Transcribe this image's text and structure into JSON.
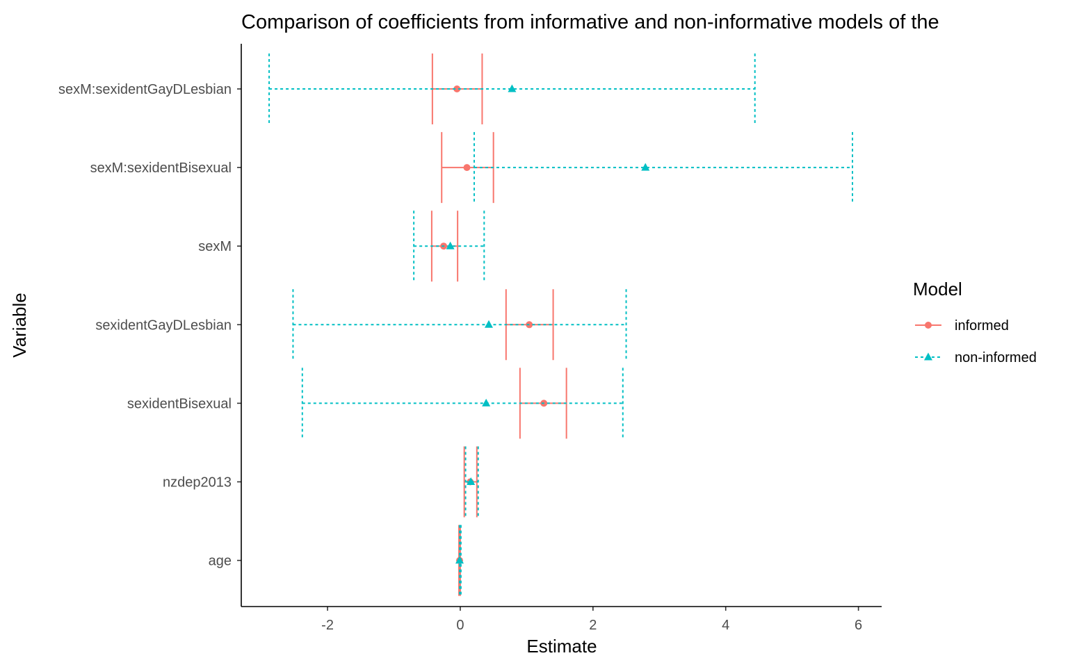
{
  "chart_data": {
    "type": "scatter",
    "title": "Comparison of coefficients from informative and non-informative models of the",
    "xlabel": "Estimate",
    "ylabel": "Variable",
    "xlim": [
      -3.3,
      6.35
    ],
    "xticks": [
      -2,
      0,
      2,
      4,
      6
    ],
    "xtick_labels": [
      "-2",
      "0",
      "2",
      "4",
      "6"
    ],
    "grid": false,
    "categories": [
      "sexM:sexidentGayDLesbian",
      "sexM:sexidentBisexual",
      "sexM",
      "sexidentGayDLesbian",
      "sexidentBisexual",
      "nzdep2013",
      "age"
    ],
    "legend": {
      "title": "Model",
      "position": "right",
      "entries": [
        "informed",
        "non-informed"
      ]
    },
    "series": [
      {
        "name": "informed",
        "color": "#F8766D",
        "line": "solid",
        "marker": "circle",
        "estimates": [
          -0.05,
          0.1,
          -0.25,
          1.04,
          1.26,
          0.15,
          -0.01
        ],
        "lower": [
          -0.42,
          -0.28,
          -0.43,
          0.69,
          0.9,
          0.06,
          -0.02
        ],
        "upper": [
          0.33,
          0.5,
          -0.04,
          1.4,
          1.6,
          0.25,
          0.0
        ]
      },
      {
        "name": "non-informed",
        "color": "#00BFC4",
        "line": "dotted",
        "marker": "triangle",
        "estimates": [
          0.78,
          2.79,
          -0.15,
          0.43,
          0.39,
          0.16,
          -0.01
        ],
        "lower": [
          -2.88,
          0.21,
          -0.7,
          -2.52,
          -2.38,
          0.08,
          -0.01
        ],
        "upper": [
          4.44,
          5.91,
          0.36,
          2.5,
          2.45,
          0.27,
          0.01
        ]
      }
    ]
  }
}
